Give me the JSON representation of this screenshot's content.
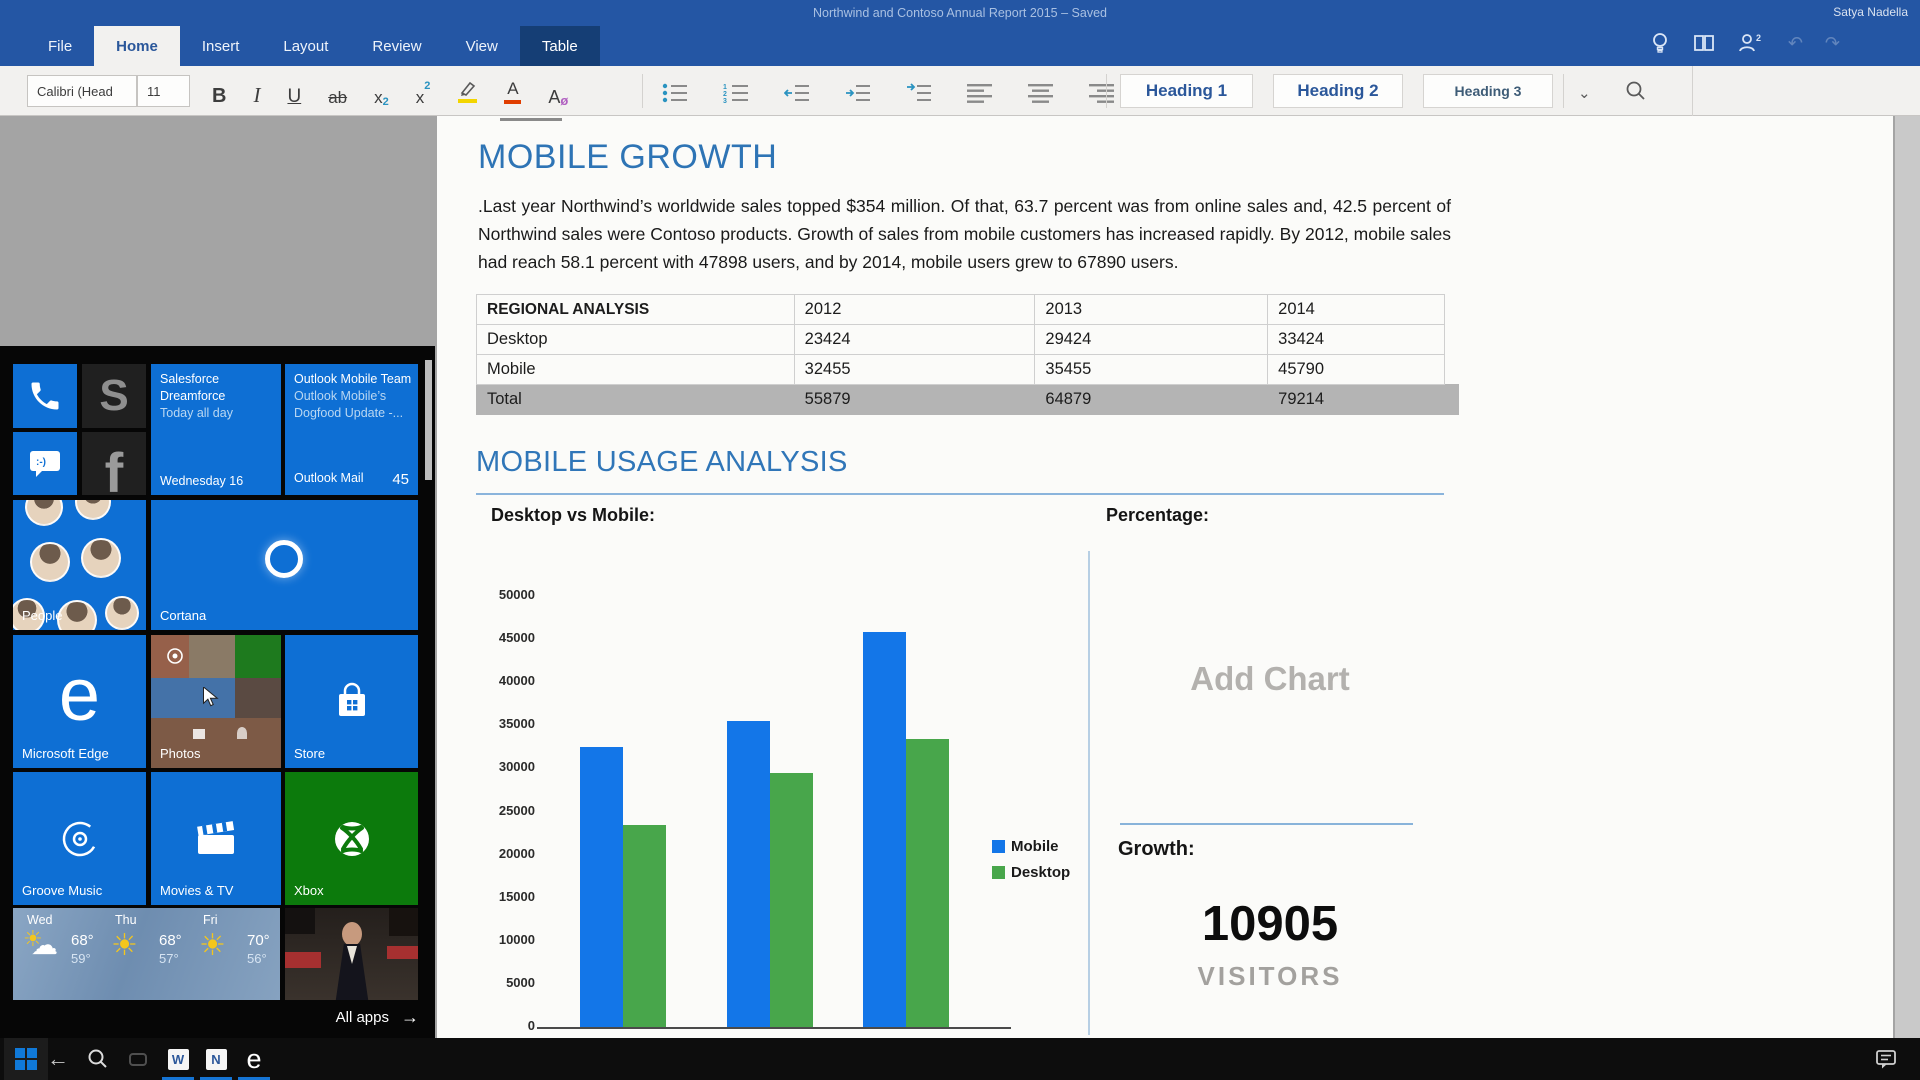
{
  "titlebar": {
    "title": "Northwind and Contoso Annual Report 2015 – Saved",
    "user": "Satya Nadella"
  },
  "ribbon": {
    "tabs": [
      "File",
      "Home",
      "Insert",
      "Layout",
      "Review",
      "View",
      "Table"
    ],
    "active_tab": "Home",
    "contextual_tab": "Table",
    "font_name": "Calibri (Head",
    "font_size": "11",
    "buttons": {
      "bold": "B",
      "italic": "I",
      "underline": "U",
      "strikethrough": "ab",
      "subscript_base": "x",
      "subscript_mark": "2",
      "superscript_base": "x",
      "superscript_mark": "2",
      "font_color_letter": "A",
      "clear_format_letter": "A"
    },
    "styles": [
      "Heading 1",
      "Heading 2",
      "Heading 3"
    ]
  },
  "document": {
    "heading": "MOBILE GROWTH",
    "paragraph": ".Last year Northwind’s worldwide sales topped $354 million. Of that, 63.7 percent was from online sales and, 42.5 percent of Northwind sales were Contoso products. Growth of sales from mobile customers has increased rapidly. By 2012, mobile sales had reach 58.1 percent with 47898 users, and by 2014, mobile users grew to 67890 users.",
    "table": {
      "headers": [
        "REGIONAL ANALYSIS",
        "2012",
        "2013",
        "2014"
      ],
      "rows": [
        {
          "label": "Desktop",
          "values": [
            "23424",
            "29424",
            "33424"
          ],
          "total": false
        },
        {
          "label": "Mobile",
          "values": [
            "32455",
            "35455",
            "45790"
          ],
          "total": false
        },
        {
          "label": "Total",
          "values": [
            "55879",
            "64879",
            "79214"
          ],
          "total": true
        }
      ]
    },
    "section_heading": "MOBILE USAGE ANALYSIS",
    "chart_title": "Desktop vs Mobile:",
    "percentage_title": "Percentage:",
    "add_chart_placeholder": "Add Chart",
    "growth_label": "Growth:",
    "growth_value": "10905",
    "growth_unit": "VISITORS"
  },
  "chart_data": {
    "type": "bar",
    "title": "Desktop vs Mobile:",
    "categories": [
      "2012",
      "2013",
      "2014"
    ],
    "series": [
      {
        "name": "Mobile",
        "color": "#1376e8",
        "values": [
          32455,
          35455,
          45790
        ]
      },
      {
        "name": "Desktop",
        "color": "#48a64b",
        "values": [
          23424,
          29424,
          33424
        ]
      }
    ],
    "ylim": [
      0,
      50000
    ],
    "ytick_step": 5000,
    "grid": false,
    "legend_position": "right",
    "x_tick_labels_visible": false
  },
  "start_menu": {
    "tiles": {
      "skype_glyph": "S",
      "facebook_glyph": "f",
      "messaging_glyph": ":-)",
      "calendar": {
        "line1": "Salesforce",
        "line2": "Dreamforce",
        "line3": "Today all day",
        "footer": "Wednesday 16"
      },
      "mail": {
        "line1": "Outlook Mobile Team",
        "line2": "Outlook Mobile’s",
        "line3": "Dogfood Update -...",
        "footer": "Outlook Mail",
        "badge": "45"
      },
      "people_label": "People",
      "cortana_label": "Cortana",
      "edge_label": "Microsoft Edge",
      "edge_glyph": "e",
      "photos_label": "Photos",
      "store_label": "Store",
      "groove_label": "Groove Music",
      "movies_label": "Movies & TV",
      "xbox_label": "Xbox"
    },
    "weather": {
      "days": [
        {
          "day": "Wed",
          "hi": "68°",
          "lo": "59°",
          "icon": "partly-cloudy"
        },
        {
          "day": "Thu",
          "hi": "68°",
          "lo": "57°",
          "icon": "sunny"
        },
        {
          "day": "Fri",
          "hi": "70°",
          "lo": "56°",
          "icon": "sunny"
        }
      ]
    },
    "all_apps_label": "All apps"
  },
  "taskbar": {
    "word_glyph": "W",
    "office_glyph": "N",
    "edge_glyph": "e"
  }
}
